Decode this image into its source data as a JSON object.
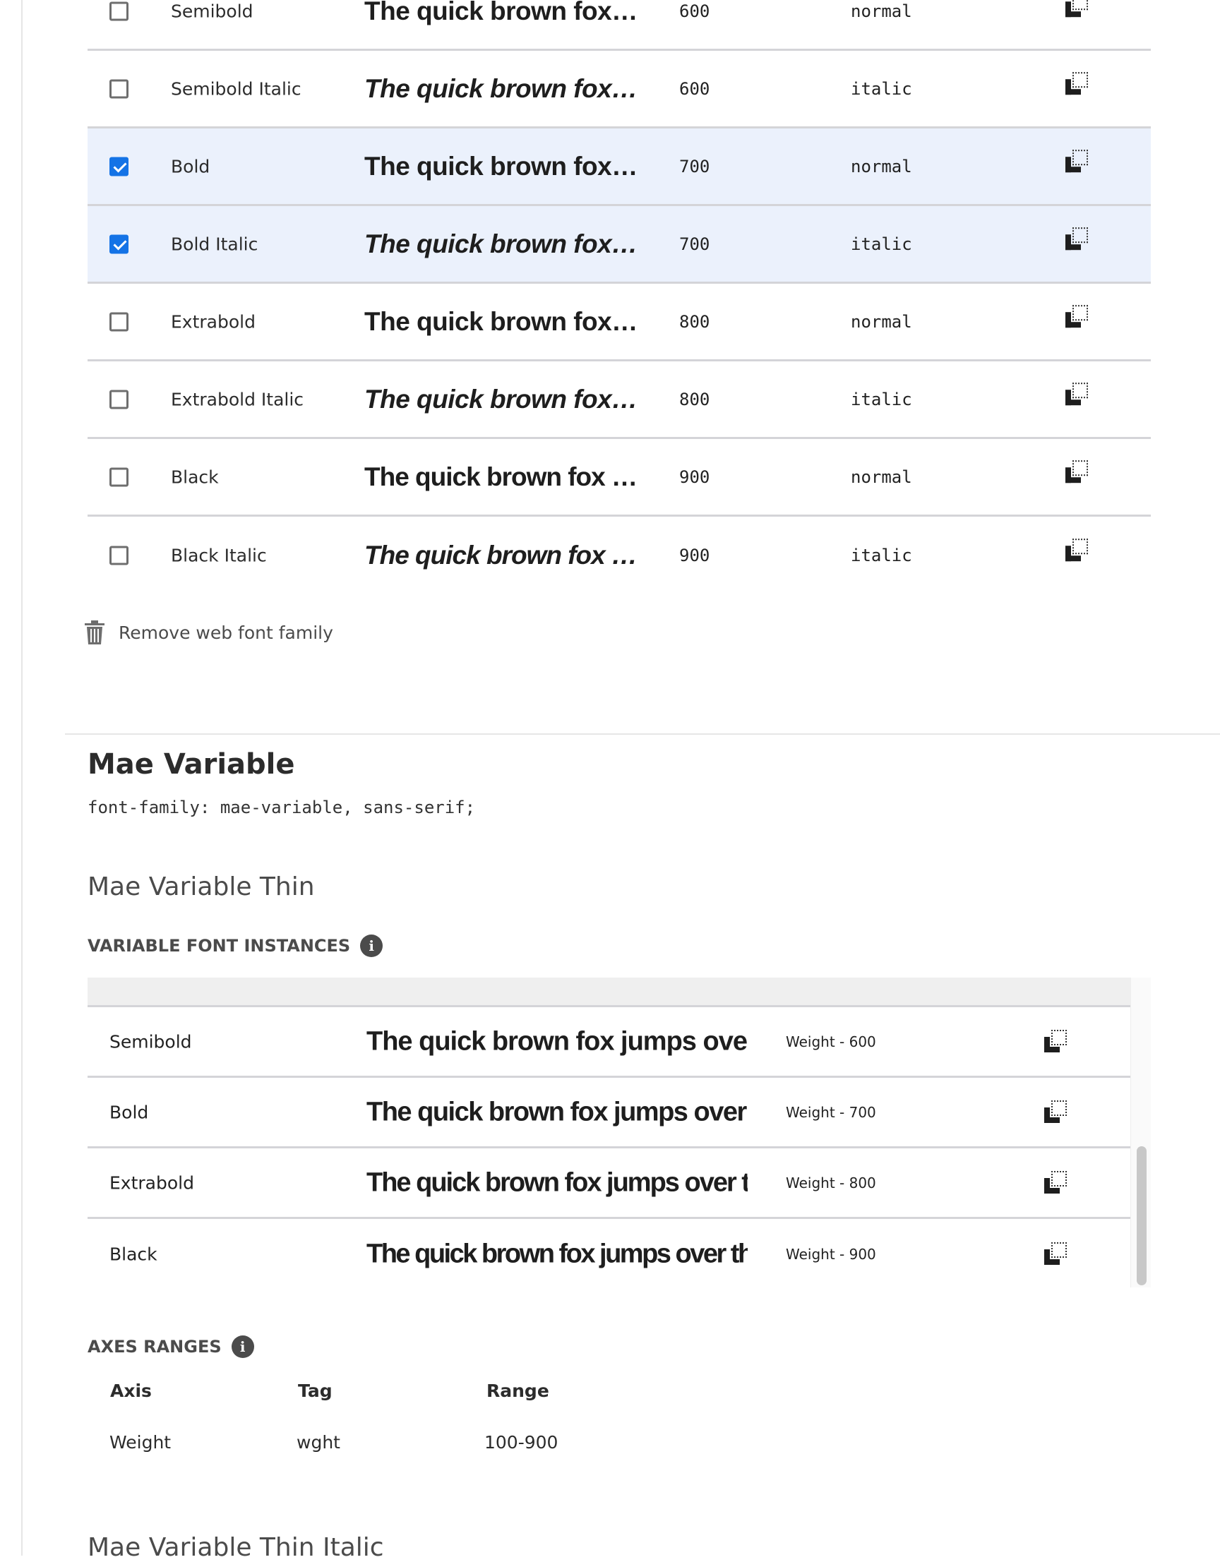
{
  "styles_table": {
    "rows": [
      {
        "name": "Semibold",
        "sample": "The quick brown fox jumps over the lazy dog",
        "weight": "600",
        "style": "normal",
        "checked": false
      },
      {
        "name": "Semibold Italic",
        "sample": "The quick brown fox jumps over the lazy dog",
        "weight": "600",
        "style": "italic",
        "checked": false
      },
      {
        "name": "Bold",
        "sample": "The quick brown fox jumps over the lazy dog",
        "weight": "700",
        "style": "normal",
        "checked": true
      },
      {
        "name": "Bold Italic",
        "sample": "The quick brown fox jumps over the lazy dog",
        "weight": "700",
        "style": "italic",
        "checked": true
      },
      {
        "name": "Extrabold",
        "sample": "The quick brown fox jumps over the lazy dog",
        "weight": "800",
        "style": "normal",
        "checked": false
      },
      {
        "name": "Extrabold Italic",
        "sample": "The quick brown fox jumps over the lazy dog",
        "weight": "800",
        "style": "italic",
        "checked": false
      },
      {
        "name": "Black",
        "sample": "The quick brown fox jumps over the lazy dog",
        "weight": "900",
        "style": "normal",
        "checked": false
      },
      {
        "name": "Black Italic",
        "sample": "The quick brown fox jumps over the lazy dog",
        "weight": "900",
        "style": "italic",
        "checked": false
      }
    ],
    "remove_label": "Remove web font family"
  },
  "family": {
    "title": "Mae Variable",
    "css": "font-family: mae-variable, sans-serif;",
    "font_title": "Mae Variable Thin",
    "instances_label": "VARIABLE FONT INSTANCES",
    "instances": [
      {
        "name": "Semibold",
        "sample": "The quick brown fox jumps over the lazy dog",
        "weight": "Weight - 600"
      },
      {
        "name": "Bold",
        "sample": "The quick brown fox jumps over the lazy dog",
        "weight": "Weight - 700"
      },
      {
        "name": "Extrabold",
        "sample": "The quick brown fox jumps over the lazy dog",
        "weight": "Weight - 800"
      },
      {
        "name": "Black",
        "sample": "The quick brown fox jumps over the lazy dog",
        "weight": "Weight - 900"
      }
    ],
    "axes_label": "AXES RANGES",
    "axes_headers": {
      "axis": "Axis",
      "tag": "Tag",
      "range": "Range"
    },
    "axes": [
      {
        "axis": "Weight",
        "tag": "wght",
        "range": "100-900"
      }
    ],
    "next_font_title": "Mae Variable Thin Italic"
  },
  "colors": {
    "accent": "#1473e6",
    "selected_row": "#ebf1fc"
  }
}
